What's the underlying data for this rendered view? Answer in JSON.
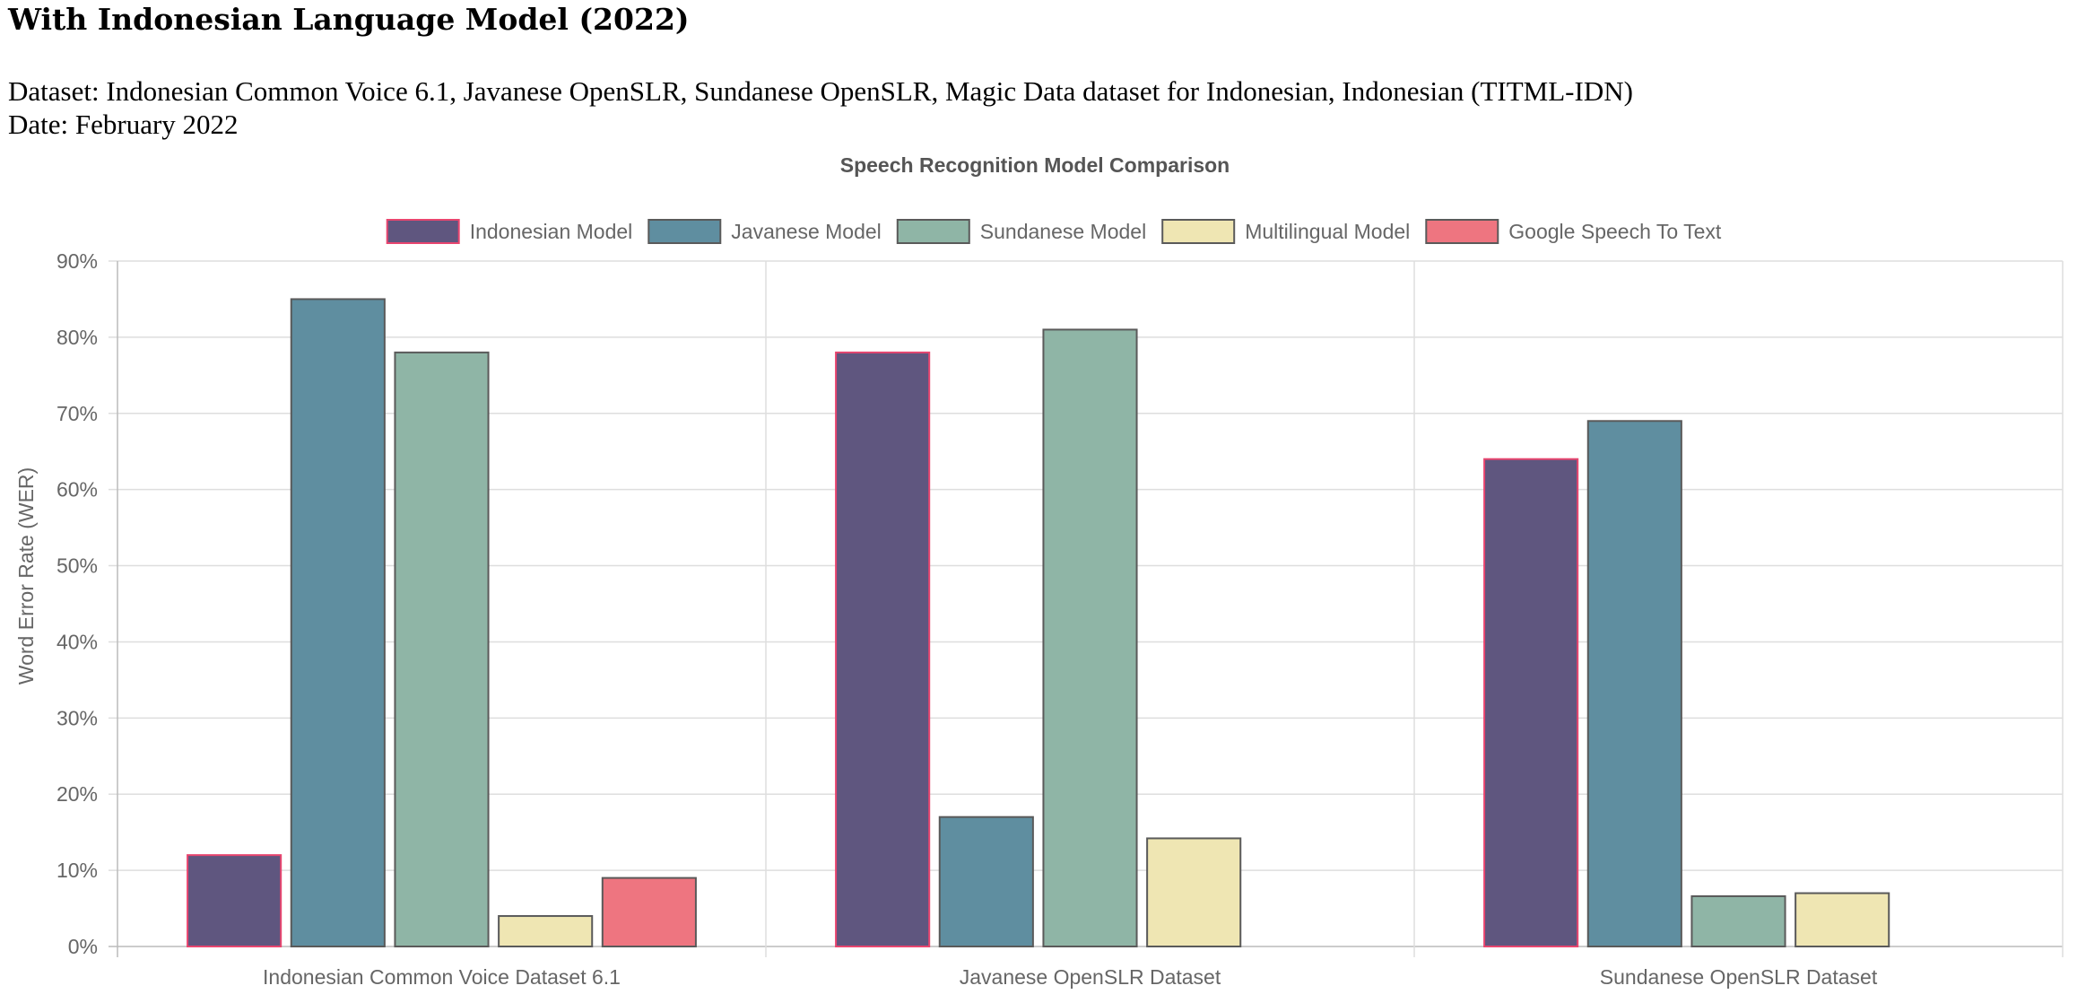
{
  "page": {
    "heading": "With Indonesian Language Model (2022)",
    "dataset_line": "Dataset: Indonesian Common Voice 6.1, Javanese OpenSLR, Sundanese OpenSLR, Magic Data dataset for Indonesian, Indonesian (TITML-IDN)",
    "date_line": "Date: February 2022"
  },
  "chart_data": {
    "type": "bar",
    "title": "Speech Recognition Model Comparison",
    "xlabel": "",
    "ylabel": "Word Error Rate (WER)",
    "categories": [
      "Indonesian Common Voice Dataset 6.1",
      "Javanese OpenSLR Dataset",
      "Sundanese OpenSLR Dataset"
    ],
    "ylim": [
      0,
      90
    ],
    "yticks": [
      0,
      10,
      20,
      30,
      40,
      50,
      60,
      70,
      80,
      90
    ],
    "ytick_suffix": "%",
    "grid": true,
    "legend_position": "top",
    "series": [
      {
        "name": "Indonesian Model",
        "color": "#5f567f",
        "border": "#e8456f",
        "values": [
          12,
          78,
          64
        ]
      },
      {
        "name": "Javanese Model",
        "color": "#5f8ea0",
        "border": "#5a5a5a",
        "values": [
          85,
          17,
          69
        ]
      },
      {
        "name": "Sundanese Model",
        "color": "#8fb5a6",
        "border": "#5a5a5a",
        "values": [
          78,
          81,
          6.6
        ]
      },
      {
        "name": "Multilingual Model",
        "color": "#efe6b3",
        "border": "#5a5a5a",
        "values": [
          4,
          14.2,
          7
        ]
      },
      {
        "name": "Google Speech To Text",
        "color": "#ee7580",
        "border": "#5a5a5a",
        "values": [
          9,
          null,
          null
        ]
      }
    ]
  }
}
